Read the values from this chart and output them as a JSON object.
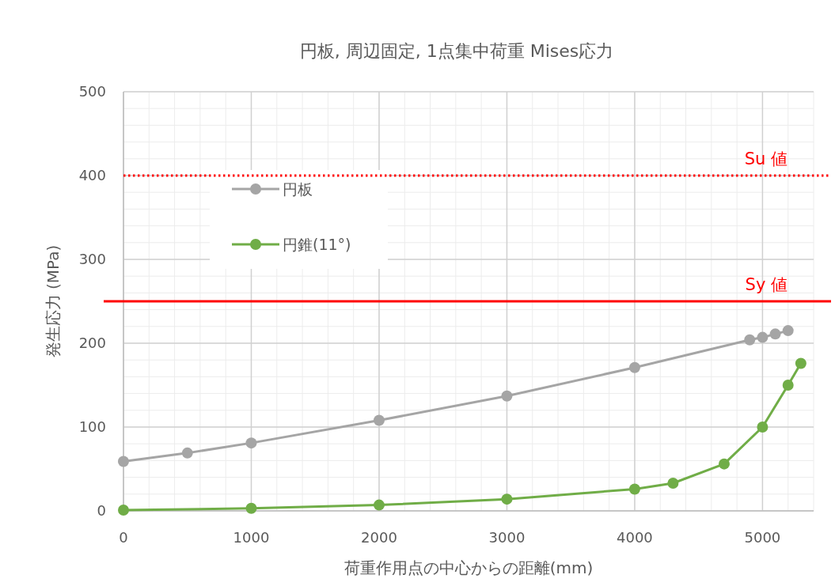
{
  "chart_data": {
    "type": "line",
    "title": "円板, 周辺固定, 1点集中荷重  Mises応力",
    "xlabel": "荷重作用点の中心からの距離(mm)",
    "ylabel": "発生応力 (MPa)",
    "xlim": [
      0,
      5400
    ],
    "xticks": [
      0,
      1000,
      2000,
      3000,
      4000,
      5000
    ],
    "ylim": [
      0,
      500
    ],
    "yticks": [
      0,
      100,
      200,
      300,
      400,
      500
    ],
    "grid": true,
    "legend": "top left",
    "marker": "circle",
    "line_style": "solid",
    "series": [
      {
        "name": "円板",
        "color": "#a5a5a5",
        "x": [
          0,
          500,
          1000,
          2000,
          3000,
          4000,
          4900,
          5000,
          5100,
          5200
        ],
        "values": [
          59,
          69,
          81,
          108,
          137,
          171,
          204,
          207,
          211,
          215
        ]
      },
      {
        "name": "円錐(11°)",
        "color": "#70ad47",
        "x": [
          0,
          1000,
          2000,
          3000,
          4000,
          4300,
          4700,
          5000,
          5200,
          5300
        ],
        "values": [
          1,
          3,
          7,
          14,
          26,
          33,
          56,
          100,
          150,
          176
        ]
      }
    ],
    "ref_lines": [
      {
        "axis": "y",
        "value": 400,
        "label": "Su 値",
        "color": "#ff0000",
        "line_style": "dotted"
      },
      {
        "axis": "y",
        "value": 250,
        "label": "Sy 値",
        "color": "#ff0000",
        "line_style": "solid"
      }
    ]
  }
}
